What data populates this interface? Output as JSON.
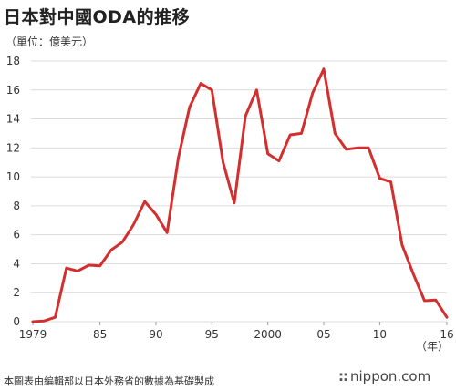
{
  "header": {
    "title": "日本對中國ODA的推移",
    "unit": "（單位：億美元）"
  },
  "footer": {
    "source": "本圖表由編輯部以日本外務省的數據為基礎製成",
    "logo_mark": "::",
    "logo_text": "nippon.com"
  },
  "chart_data": {
    "type": "line",
    "title": "日本對中國ODA的推移",
    "ylabel": "（單位：億美元）",
    "xlabel": "",
    "x_unit_label": "（年）",
    "xlim": [
      1979,
      2016
    ],
    "ylim": [
      0,
      18
    ],
    "grid": true,
    "line_color": "#d32f2f",
    "yticks": [
      0,
      2,
      4,
      6,
      8,
      10,
      12,
      14,
      16,
      18
    ],
    "xticks": [
      {
        "value": 1979,
        "label": "1979"
      },
      {
        "value": 1985,
        "label": "85"
      },
      {
        "value": 1990,
        "label": "90"
      },
      {
        "value": 1995,
        "label": "95"
      },
      {
        "value": 2000,
        "label": "2000"
      },
      {
        "value": 2005,
        "label": "05"
      },
      {
        "value": 2010,
        "label": "10"
      },
      {
        "value": 2016,
        "label": "16"
      }
    ],
    "series": [
      {
        "x": [
          1979,
          1980,
          1981,
          1982,
          1983,
          1984,
          1985,
          1986,
          1987,
          1988,
          1989,
          1990,
          1991,
          1992,
          1993,
          1994,
          1995,
          1996,
          1997,
          1998,
          1999,
          2000,
          2001,
          2002,
          2003,
          2004,
          2005,
          2006,
          2007,
          2008,
          2009,
          2010,
          2011,
          2012,
          2013,
          2014,
          2015,
          2016
        ],
        "values": [
          0.0,
          0.05,
          0.3,
          3.7,
          3.5,
          3.9,
          3.85,
          4.95,
          5.5,
          6.7,
          8.3,
          7.4,
          6.15,
          11.3,
          14.8,
          16.45,
          16.0,
          11.0,
          8.2,
          14.2,
          16.0,
          11.6,
          11.1,
          12.9,
          13.0,
          15.8,
          17.45,
          13.0,
          11.9,
          12.0,
          12.0,
          9.9,
          9.65,
          5.3,
          3.3,
          1.45,
          1.5,
          0.3
        ]
      }
    ]
  }
}
